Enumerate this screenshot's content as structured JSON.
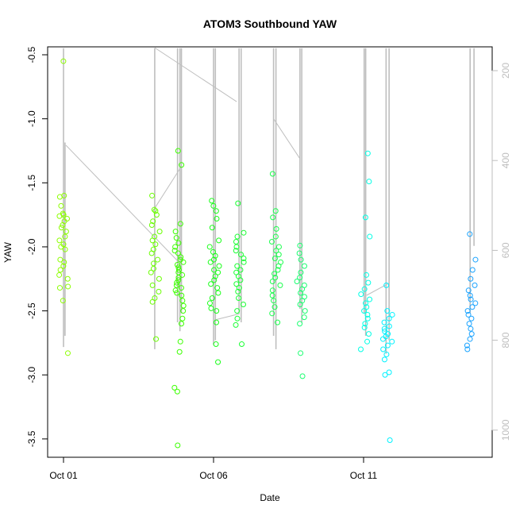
{
  "chart_data": {
    "type": "scatter",
    "title": "ATOM3 Southbound YAW",
    "xlabel": "Date",
    "ylabel": "YAW",
    "xlim": [
      "Sep 30 11:00",
      "Oct 15 07:00"
    ],
    "ylim": [
      -3.64,
      -0.44
    ],
    "y2lim_inverted": [
      165,
      1050
    ],
    "x_ticks": [
      {
        "label": "Oct 01",
        "day": 1
      },
      {
        "label": "Oct 06",
        "day": 6
      },
      {
        "label": "Oct 11",
        "day": 11
      }
    ],
    "y_ticks": [
      "-0.5",
      "-1.0",
      "-1.5",
      "-2.0",
      "-2.5",
      "-3.0",
      "-3.5"
    ],
    "y2_ticks": [
      "200",
      "400",
      "600",
      "800",
      "1000"
    ],
    "y2_axis_color": "#bebebe",
    "grid": false,
    "marker": "open-circle",
    "clusters": [
      {
        "day": 1.0,
        "color": "#8cff00",
        "yaw": [
          -0.55,
          -1.6,
          -1.61,
          -1.68,
          -1.74,
          -1.75,
          -1.76,
          -1.78,
          -1.8,
          -1.83,
          -1.85,
          -1.88,
          -1.92,
          -1.95,
          -1.98,
          -2.0,
          -2.02,
          -2.1,
          -2.12,
          -2.15,
          -2.18,
          -2.22,
          -2.25,
          -2.31,
          -2.32,
          -2.42,
          -2.83
        ]
      },
      {
        "day": 4.05,
        "color": "#6aff00",
        "yaw": [
          -1.6,
          -1.71,
          -1.72,
          -1.75,
          -1.8,
          -1.83,
          -1.88,
          -1.92,
          -1.95,
          -1.98,
          -2.02,
          -2.05,
          -2.1,
          -2.13,
          -2.17,
          -2.2,
          -2.25,
          -2.3,
          -2.35,
          -2.4,
          -2.43,
          -2.72
        ]
      },
      {
        "day": 4.85,
        "color": "#3cff00",
        "yaw": [
          -1.25,
          -1.36,
          -1.82,
          -1.88,
          -1.93,
          -1.97,
          -2.0,
          -2.03,
          -2.05,
          -2.08,
          -2.1,
          -2.12,
          -2.14,
          -2.16,
          -2.18,
          -2.2,
          -2.22,
          -2.24,
          -2.26,
          -2.28,
          -2.3,
          -2.32,
          -2.34,
          -2.36,
          -2.38,
          -2.42,
          -2.46,
          -2.5,
          -2.56,
          -2.6,
          -2.74,
          -2.82,
          -3.1,
          -3.13,
          -3.55
        ]
      },
      {
        "day": 6.03,
        "color": "#1aff1a",
        "yaw": [
          -1.64,
          -1.68,
          -1.72,
          -1.78,
          -1.85,
          -1.95,
          -2.0,
          -2.04,
          -2.07,
          -2.1,
          -2.12,
          -2.15,
          -2.18,
          -2.2,
          -2.23,
          -2.26,
          -2.29,
          -2.32,
          -2.36,
          -2.4,
          -2.44,
          -2.48,
          -2.5,
          -2.59,
          -2.76,
          -2.9
        ]
      },
      {
        "day": 6.9,
        "color": "#1aff33",
        "yaw": [
          -1.66,
          -1.89,
          -1.92,
          -1.96,
          -2.0,
          -2.03,
          -2.06,
          -2.09,
          -2.12,
          -2.15,
          -2.18,
          -2.2,
          -2.23,
          -2.26,
          -2.29,
          -2.32,
          -2.35,
          -2.4,
          -2.45,
          -2.5,
          -2.56,
          -2.61,
          -2.76
        ]
      },
      {
        "day": 8.1,
        "color": "#1aff4d",
        "yaw": [
          -1.43,
          -1.72,
          -1.77,
          -1.86,
          -1.92,
          -1.96,
          -2.0,
          -2.03,
          -2.06,
          -2.09,
          -2.12,
          -2.15,
          -2.18,
          -2.21,
          -2.24,
          -2.27,
          -2.3,
          -2.34,
          -2.38,
          -2.42,
          -2.47,
          -2.52,
          -2.59
        ]
      },
      {
        "day": 8.9,
        "color": "#1aff70",
        "yaw": [
          -1.99,
          -2.05,
          -2.1,
          -2.15,
          -2.2,
          -2.24,
          -2.27,
          -2.3,
          -2.33,
          -2.36,
          -2.39,
          -2.42,
          -2.45,
          -2.5,
          -2.55,
          -2.6,
          -2.83,
          -3.01
        ]
      },
      {
        "day": 11.05,
        "color": "#00ffe6",
        "yaw": [
          -1.27,
          -1.49,
          -1.77,
          -1.92,
          -2.22,
          -2.28,
          -2.33,
          -2.37,
          -2.41,
          -2.44,
          -2.47,
          -2.5,
          -2.53,
          -2.56,
          -2.6,
          -2.63,
          -2.68,
          -2.74,
          -2.8
        ]
      },
      {
        "day": 11.8,
        "color": "#00f2ff",
        "yaw": [
          -2.3,
          -2.5,
          -2.53,
          -2.56,
          -2.59,
          -2.62,
          -2.64,
          -2.66,
          -2.68,
          -2.7,
          -2.72,
          -2.74,
          -2.77,
          -2.8,
          -2.84,
          -2.88,
          -2.98,
          -3.0,
          -3.51
        ]
      },
      {
        "day": 14.6,
        "color": "#1aa3ff",
        "yaw": [
          -1.9,
          -2.1,
          -2.18,
          -2.25,
          -2.3,
          -2.34,
          -2.38,
          -2.41,
          -2.44,
          -2.47,
          -2.5,
          -2.53,
          -2.56,
          -2.6,
          -2.64,
          -2.68,
          -2.72,
          -2.77,
          -2.8
        ]
      }
    ],
    "secondary_series": {
      "color": "#bebebe",
      "axis": "right",
      "vertical_runs": [
        [
          1.0,
          150,
          815
        ],
        [
          1.05,
          360,
          790
        ],
        [
          4.04,
          150,
          820
        ],
        [
          4.8,
          150,
          760
        ],
        [
          4.88,
          150,
          780
        ],
        [
          4.93,
          150,
          740
        ],
        [
          6.0,
          150,
          810
        ],
        [
          6.06,
          150,
          800
        ],
        [
          6.85,
          150,
          740
        ],
        [
          6.92,
          150,
          760
        ],
        [
          8.0,
          150,
          790
        ],
        [
          8.08,
          150,
          820
        ],
        [
          8.88,
          150,
          730
        ],
        [
          8.94,
          150,
          760
        ],
        [
          11.02,
          150,
          740
        ],
        [
          11.07,
          150,
          790
        ],
        [
          11.75,
          150,
          830
        ],
        [
          11.85,
          150,
          800
        ],
        [
          14.55,
          150,
          740
        ],
        [
          14.68,
          150,
          590
        ]
      ],
      "segments": [
        [
          1.08,
          366,
          4.84,
          626
        ],
        [
          4.04,
          506,
          4.92,
          414
        ],
        [
          4.04,
          149,
          6.77,
          269
        ],
        [
          8.01,
          308,
          8.88,
          396
        ],
        [
          6.03,
          755,
          6.87,
          741
        ],
        [
          11.1,
          700,
          11.85,
          673
        ]
      ]
    }
  }
}
